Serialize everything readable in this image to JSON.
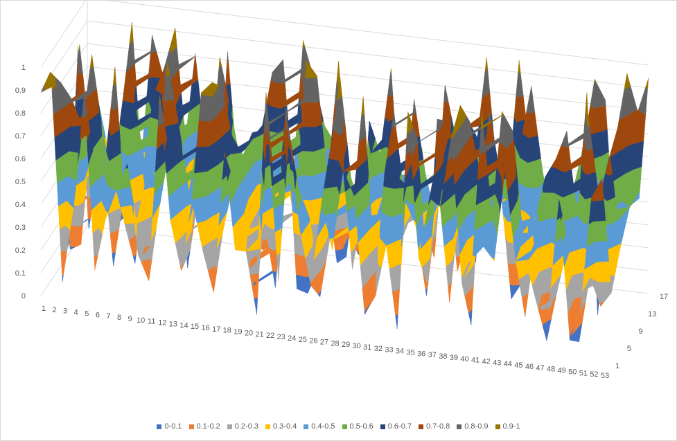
{
  "chart_data": {
    "type": "surface",
    "title": "",
    "z_axis_ticks": [
      "0",
      "0.1",
      "0.2",
      "0.3",
      "0.4",
      "0.5",
      "0.6",
      "0.7",
      "0.8",
      "0.9",
      "1"
    ],
    "zlim": [
      0,
      1
    ],
    "x_categories": [
      "1",
      "2",
      "3",
      "4",
      "5",
      "6",
      "7",
      "8",
      "9",
      "10",
      "11",
      "12",
      "13",
      "14",
      "15",
      "16",
      "17",
      "18",
      "19",
      "20",
      "21",
      "22",
      "23",
      "24",
      "25",
      "26",
      "27",
      "28",
      "29",
      "30",
      "31",
      "32",
      "33",
      "34",
      "35",
      "36",
      "37",
      "38",
      "39",
      "40",
      "41",
      "42",
      "43",
      "44",
      "45",
      "46",
      "47",
      "48",
      "49",
      "50",
      "51",
      "52",
      "53"
    ],
    "depth_ticks": [
      "1",
      "5",
      "9",
      "13",
      "17"
    ],
    "legend_position": "bottom",
    "bands": [
      {
        "name": "0-0.1",
        "color": "#4472c4"
      },
      {
        "name": "0.1-0.2",
        "color": "#ed7d31"
      },
      {
        "name": "0.2-0.3",
        "color": "#a5a5a5"
      },
      {
        "name": "0.3-0.4",
        "color": "#ffc000"
      },
      {
        "name": "0.4-0.5",
        "color": "#5b9bd5"
      },
      {
        "name": "0.5-0.6",
        "color": "#70ad47"
      },
      {
        "name": "0.6-0.7",
        "color": "#264478"
      },
      {
        "name": "0.7-0.8",
        "color": "#9e480e"
      },
      {
        "name": "0.8-0.9",
        "color": "#636363"
      },
      {
        "name": "0.9-1",
        "color": "#997300"
      }
    ]
  }
}
